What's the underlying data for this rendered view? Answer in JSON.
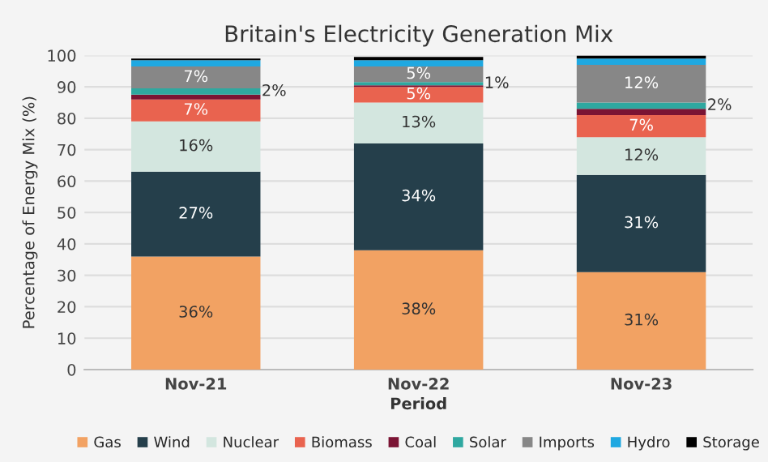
{
  "chart_data": {
    "type": "bar",
    "stacked": true,
    "title": "Britain's Electricity Generation Mix",
    "xlabel": "Period",
    "ylabel": "Percentage of Energy Mix (%)",
    "categories": [
      "Nov-21",
      "Nov-22",
      "Nov-23"
    ],
    "series": [
      {
        "name": "Gas",
        "color": "#f2a263",
        "values": [
          36,
          38,
          31
        ],
        "value_labels": [
          "36%",
          "38%",
          "31%"
        ]
      },
      {
        "name": "Wind",
        "color": "#253f4b",
        "values": [
          27,
          34,
          31
        ],
        "value_labels": [
          "27%",
          "34%",
          "31%"
        ]
      },
      {
        "name": "Nuclear",
        "color": "#d3e6df",
        "values": [
          16,
          13,
          12
        ],
        "value_labels": [
          "16%",
          "13%",
          "12%"
        ]
      },
      {
        "name": "Biomass",
        "color": "#e9634f",
        "values": [
          7,
          5,
          7
        ],
        "value_labels": [
          "7%",
          "5%",
          "7%"
        ]
      },
      {
        "name": "Coal",
        "color": "#7b1434",
        "values": [
          1.5,
          0.5,
          2
        ],
        "value_labels": [
          null,
          null,
          null
        ]
      },
      {
        "name": "Solar",
        "color": "#2fa8a0",
        "values": [
          2,
          1,
          2
        ],
        "value_labels": [
          "2%",
          "1%",
          "2%"
        ]
      },
      {
        "name": "Imports",
        "color": "#878787",
        "values": [
          7,
          5,
          12
        ],
        "value_labels": [
          "7%",
          "5%",
          "12%"
        ]
      },
      {
        "name": "Hydro",
        "color": "#1fa8e1",
        "values": [
          2,
          2,
          2
        ],
        "value_labels": [
          null,
          null,
          null
        ]
      },
      {
        "name": "Storage",
        "color": "#000000",
        "values": [
          0.5,
          1,
          1
        ],
        "value_labels": [
          null,
          null,
          null
        ]
      }
    ],
    "ylim": [
      0,
      100
    ],
    "yticks": [
      0,
      10,
      20,
      30,
      40,
      50,
      60,
      70,
      80,
      90,
      100
    ],
    "grid": "y",
    "legend": "bottom"
  }
}
